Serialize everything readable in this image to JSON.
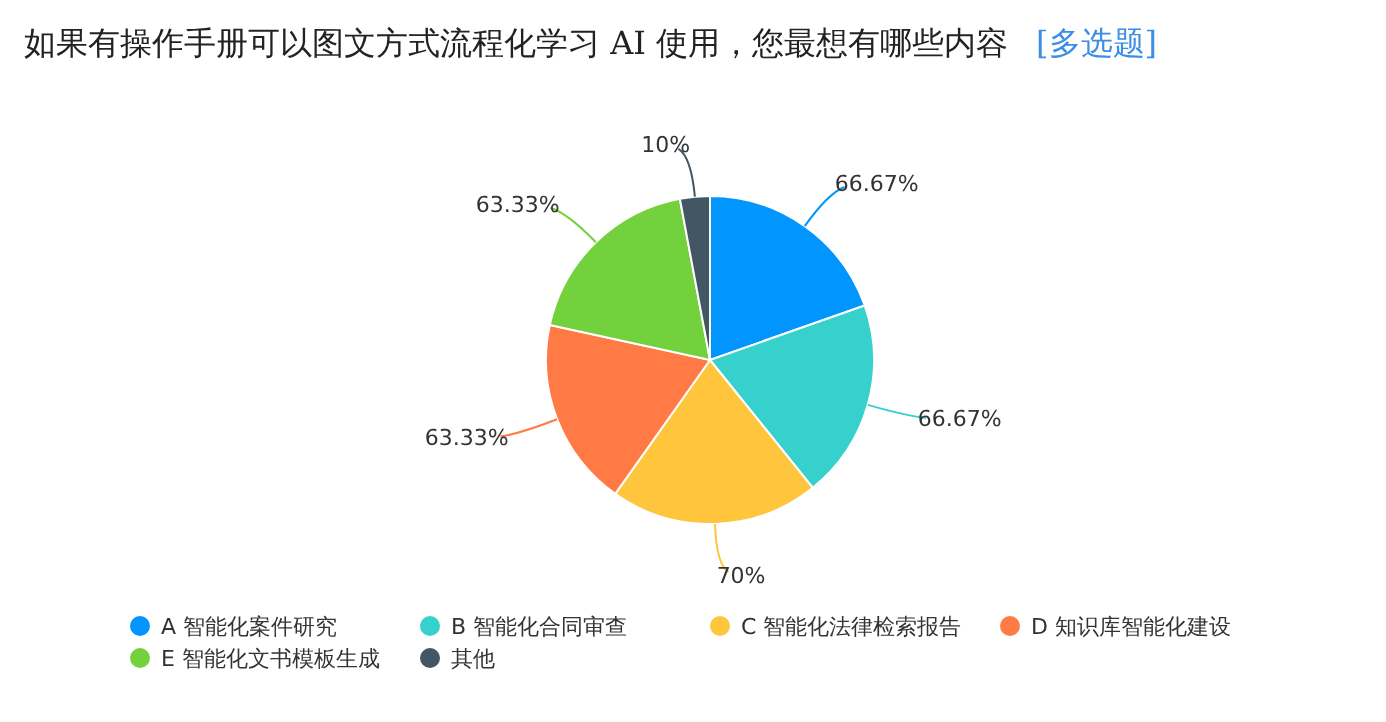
{
  "chart_data": {
    "type": "pie",
    "title": "如果有操作手册可以图文方式流程化学习 AI 使用，您最想有哪些内容",
    "subtitle": "[多选题]",
    "categories": [
      "A 智能化案件研究",
      "B 智能化合同审查",
      "C 智能化法律检索报告",
      "D 知识库智能化建设",
      "E 智能化文书模板生成",
      "其他"
    ],
    "values": [
      66.67,
      66.67,
      70,
      63.33,
      63.33,
      10
    ],
    "value_labels": [
      "66.67%",
      "66.67%",
      "70%",
      "63.33%",
      "63.33%",
      "10%"
    ],
    "colors": [
      "#0095ff",
      "#36d1cc",
      "#ffc53d",
      "#ff7a45",
      "#73d13d",
      "#435663"
    ],
    "legend": "bottom"
  }
}
